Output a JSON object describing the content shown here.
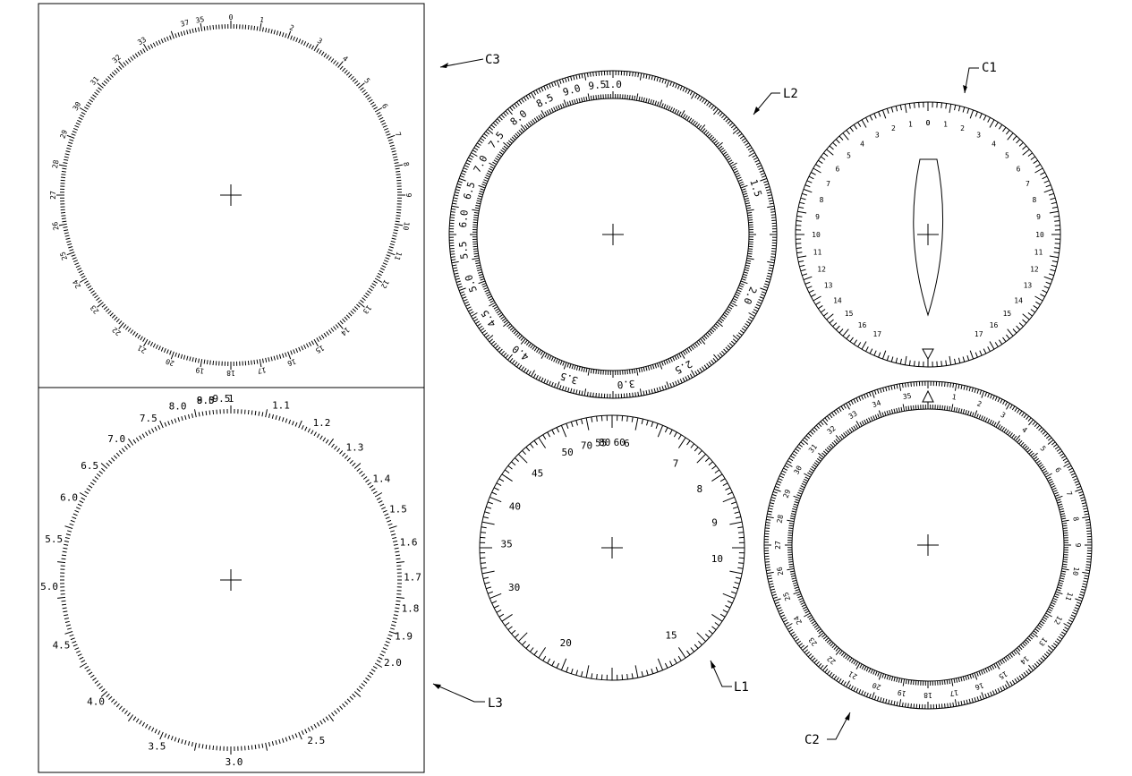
{
  "callouts": {
    "C3": "C3",
    "C1": "C1",
    "L2": "L2",
    "L1": "L1",
    "C2": "C2",
    "L3": "L3"
  },
  "dials": {
    "C3": {
      "labels": [
        "35",
        "0",
        "1",
        "2",
        "3",
        "4",
        "5",
        "6",
        "7",
        "8",
        "9",
        "10",
        "11",
        "12",
        "13",
        "14",
        "15",
        "16",
        "17",
        "18",
        "19",
        "20",
        "21",
        "22",
        "23",
        "24",
        "25",
        "26",
        "27",
        "28",
        "29",
        "30",
        "31",
        "32",
        "33",
        "37"
      ]
    },
    "L3": {
      "labels": [
        "1",
        "1.1",
        "1.2",
        "1.3",
        "1.4",
        "1.5",
        "1.6",
        "1.7",
        "1.8",
        "1.9",
        "2.0",
        "2.5",
        "3.0",
        "3.5",
        "4.0",
        "4.5",
        "5.0",
        "5.5",
        "6.0",
        "6.5",
        "7.0",
        "7.5",
        "8.0",
        "8.5",
        "9.0",
        "9.5"
      ]
    },
    "L2": {
      "labels": [
        "1.0",
        "1.5",
        "2.0",
        "2.5",
        "3.0",
        "3.5",
        "4.0",
        "4.5",
        "5.0",
        "5.5",
        "6.0",
        "6.5",
        "7.0",
        "7.5",
        "8.0",
        "8.5",
        "9.0",
        "9.5"
      ]
    },
    "C1": {
      "labels": [
        "0",
        "1",
        "2",
        "3",
        "4",
        "5",
        "6",
        "7",
        "8",
        "9",
        "10",
        "11",
        "12",
        "13",
        "14",
        "15",
        "16",
        "17",
        "17",
        "16",
        "15",
        "14",
        "13",
        "12",
        "11",
        "10",
        "9",
        "8",
        "7",
        "6",
        "5",
        "4",
        "3",
        "2",
        "1",
        "0"
      ]
    },
    "L1": {
      "labels": [
        "6",
        "7",
        "8",
        "9",
        "10",
        "15",
        "20",
        "30",
        "35",
        "40",
        "45",
        "50",
        "55",
        "60",
        "70",
        "80"
      ]
    },
    "C2": {
      "labels": [
        "35",
        "1",
        "2",
        "3",
        "4",
        "5",
        "6",
        "7",
        "8",
        "9",
        "10",
        "11",
        "12",
        "13",
        "14",
        "15",
        "16",
        "17",
        "18",
        "19",
        "20",
        "21",
        "22",
        "23",
        "24",
        "25",
        "26",
        "27",
        "28",
        "29",
        "30",
        "31",
        "32",
        "33",
        "34"
      ]
    }
  }
}
